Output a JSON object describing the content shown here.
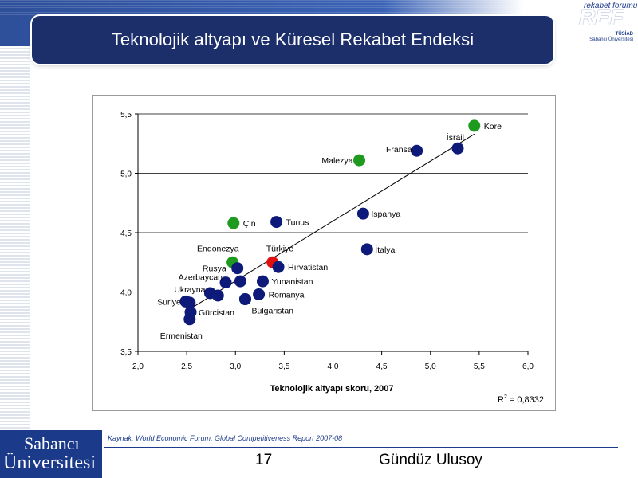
{
  "slide": {
    "title": "Teknolojik altyapı ve Küresel Rekabet Endeksi",
    "source": "Kaynak: World Economic Forum, Global Competitiveness Report 2007-08",
    "page_number": "17",
    "author": "Gündüz Ulusoy"
  },
  "logos": {
    "ref_forum": "rekabet forumu",
    "ref": "REF",
    "tusiad": "TÜSİAD",
    "su_small": "Sabancı Üniversitesi",
    "sabanci_line1": "Sabancı",
    "sabanci_line2": "Üniversitesi"
  },
  "colors": {
    "navy": "#1c3a8a",
    "point_default": "#0d1a7a",
    "point_green": "#1e9a1e",
    "point_red": "#e01010"
  },
  "chart_data": {
    "type": "scatter",
    "title": "",
    "xlabel": "Teknolojik altyapı skoru, 2007",
    "ylabel": "",
    "xlim": [
      2.0,
      6.0
    ],
    "ylim": [
      3.5,
      5.5
    ],
    "xticks": [
      "2,0",
      "2,5",
      "3,0",
      "3,5",
      "4,0",
      "4,5",
      "5,0",
      "5,5",
      "6,0"
    ],
    "yticks": [
      "3,5",
      "4,0",
      "4,5",
      "5,0",
      "5,5"
    ],
    "grid": "horizontal",
    "r2_label": "R",
    "r2_sup": "2",
    "r2_value": "= 0,8332",
    "trendline": {
      "x": [
        2.5,
        5.45
      ],
      "y": [
        3.84,
        5.33
      ]
    },
    "points": [
      {
        "label": "Kore",
        "x": 5.45,
        "y": 5.4,
        "color": "green"
      },
      {
        "label": "İsrail",
        "x": 5.28,
        "y": 5.21,
        "color": "navy"
      },
      {
        "label": "Fransa",
        "x": 4.86,
        "y": 5.19,
        "color": "navy"
      },
      {
        "label": "Malezya",
        "x": 4.27,
        "y": 5.11,
        "color": "green"
      },
      {
        "label": "Tunus",
        "x": 3.42,
        "y": 4.59,
        "color": "navy"
      },
      {
        "label": "Çin",
        "x": 2.98,
        "y": 4.58,
        "color": "green"
      },
      {
        "label": "İspanya",
        "x": 4.31,
        "y": 4.66,
        "color": "navy"
      },
      {
        "label": "İtalya",
        "x": 4.35,
        "y": 4.36,
        "color": "navy"
      },
      {
        "label": "Endonezya",
        "x": 2.97,
        "y": 4.25,
        "color": "green"
      },
      {
        "label": "Türkiye",
        "x": 3.38,
        "y": 4.25,
        "color": "red"
      },
      {
        "label": "Hırvatistan",
        "x": 3.44,
        "y": 4.21,
        "color": "navy"
      },
      {
        "label": "Rusya",
        "x": 3.02,
        "y": 4.2,
        "color": "navy"
      },
      {
        "label": "Azerbaycan",
        "x": 2.9,
        "y": 4.08,
        "color": "navy"
      },
      {
        "label": "",
        "x": 3.05,
        "y": 4.09,
        "color": "navy"
      },
      {
        "label": "Yunanistan",
        "x": 3.28,
        "y": 4.09,
        "color": "navy"
      },
      {
        "label": "Ukrayna",
        "x": 2.74,
        "y": 3.99,
        "color": "navy"
      },
      {
        "label": "",
        "x": 2.82,
        "y": 3.97,
        "color": "navy"
      },
      {
        "label": "Romanya",
        "x": 3.24,
        "y": 3.98,
        "color": "navy"
      },
      {
        "label": "",
        "x": 3.1,
        "y": 3.94,
        "color": "navy"
      },
      {
        "label": "Bulgaristan",
        "x": 3.1,
        "y": 3.94,
        "color": "navy"
      },
      {
        "label": "Suriye",
        "x": 2.49,
        "y": 3.92,
        "color": "navy"
      },
      {
        "label": "",
        "x": 2.53,
        "y": 3.91,
        "color": "navy"
      },
      {
        "label": "Gürcistan",
        "x": 2.54,
        "y": 3.83,
        "color": "navy"
      },
      {
        "label": "Ermenistan",
        "x": 2.53,
        "y": 3.77,
        "color": "navy"
      }
    ]
  }
}
